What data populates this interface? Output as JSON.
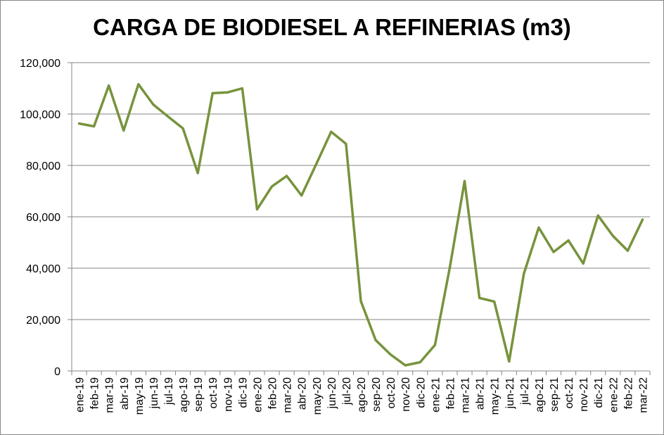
{
  "chart_data": {
    "type": "line",
    "title": "CARGA DE BIODIESEL A REFINERIAS (m3)",
    "xlabel": "",
    "ylabel": "",
    "ylim": [
      0,
      120000
    ],
    "ytick_values": [
      0,
      20000,
      40000,
      60000,
      80000,
      100000,
      120000
    ],
    "ytick_labels": [
      "0",
      "20,000",
      "40,000",
      "60,000",
      "80,000",
      "100,000",
      "120,000"
    ],
    "grid": "horizontal",
    "legend": "none",
    "line_color": "#77933C",
    "categories": [
      "ene-19",
      "feb-19",
      "mar-19",
      "abr-19",
      "may-19",
      "jun-19",
      "jul-19",
      "ago-19",
      "sep-19",
      "oct-19",
      "nov-19",
      "dic-19",
      "ene-20",
      "feb-20",
      "mar-20",
      "abr-20",
      "may-20",
      "jun-20",
      "jul-20",
      "ago-20",
      "sep-20",
      "oct-20",
      "nov-20",
      "dic-20",
      "ene-21",
      "feb-21",
      "mar-21",
      "abr-21",
      "may-21",
      "jun-21",
      "jul-21",
      "ago-21",
      "sep-21",
      "oct-21",
      "nov-21",
      "dic-21",
      "ene-22",
      "feb-22",
      "mar-22"
    ],
    "values": [
      96300,
      95200,
      111100,
      93600,
      111600,
      103700,
      99000,
      94400,
      77000,
      108100,
      108400,
      110000,
      62900,
      71800,
      75900,
      68300,
      80600,
      93100,
      88400,
      27200,
      12000,
      6400,
      2200,
      3400,
      10100,
      40300,
      73900,
      28400,
      27000,
      3700,
      37900,
      55800,
      46300,
      50800,
      41800,
      60500,
      52600,
      46800,
      58900
    ]
  }
}
